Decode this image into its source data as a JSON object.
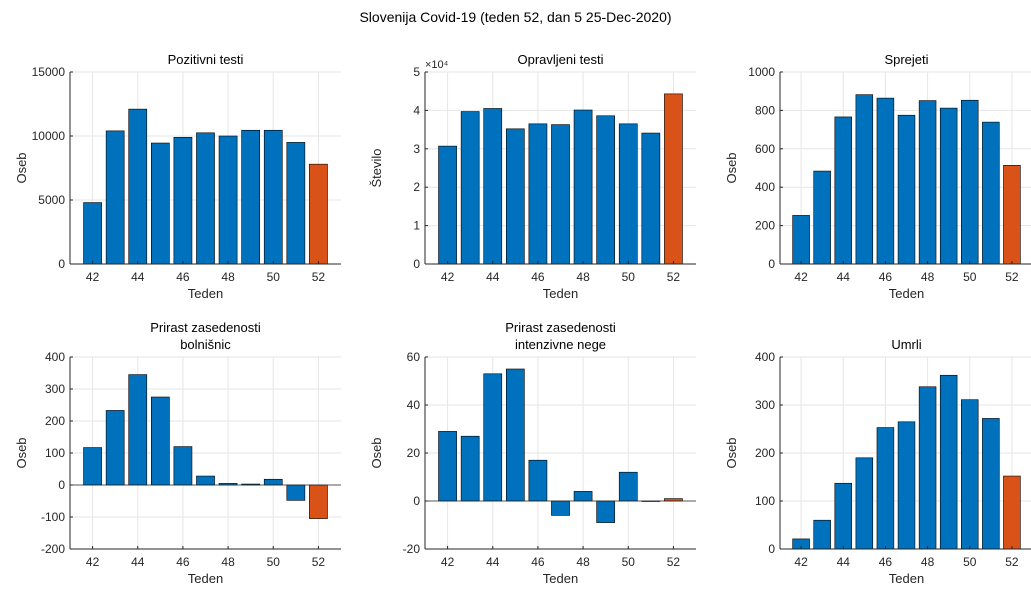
{
  "suptitle": "Slovenija Covid-19 (teden 52, dan 5 25-Dec-2020)",
  "colors": {
    "bar": "#0072BD",
    "highlight": "#D95319",
    "axis": "#262626",
    "grid": "#e6e6e6"
  },
  "chart_data": [
    {
      "type": "bar",
      "title": [
        "Pozitivni testi"
      ],
      "xlabel": "Teden",
      "ylabel": "Oseb",
      "categories": [
        42,
        43,
        44,
        45,
        46,
        47,
        48,
        49,
        50,
        51,
        52
      ],
      "values": [
        4800,
        10400,
        12100,
        9450,
        9900,
        10250,
        10000,
        10450,
        10450,
        9500,
        7800
      ],
      "highlight_index": 10,
      "xticks": [
        "42",
        "44",
        "46",
        "48",
        "50",
        "52"
      ],
      "ylim": [
        0,
        15000
      ],
      "yticks": [
        0,
        5000,
        10000,
        15000
      ],
      "ytick_labels": [
        "0",
        "5000",
        "10000",
        "15000"
      ],
      "exponent": "",
      "grid": true
    },
    {
      "type": "bar",
      "title": [
        "Opravljeni testi"
      ],
      "xlabel": "Teden",
      "ylabel": "Število",
      "categories": [
        42,
        43,
        44,
        45,
        46,
        47,
        48,
        49,
        50,
        51,
        52
      ],
      "values": [
        30700,
        39700,
        40500,
        35200,
        36500,
        36300,
        40100,
        38600,
        36500,
        34100,
        44300
      ],
      "highlight_index": 10,
      "xticks": [
        "42",
        "44",
        "46",
        "48",
        "50",
        "52"
      ],
      "ylim": [
        0,
        50000
      ],
      "yticks": [
        0,
        10000,
        20000,
        30000,
        40000,
        50000
      ],
      "ytick_labels": [
        "0",
        "1",
        "2",
        "3",
        "4",
        "5"
      ],
      "exponent": "×10⁴",
      "grid": true
    },
    {
      "type": "bar",
      "title": [
        "Sprejeti"
      ],
      "xlabel": "Teden",
      "ylabel": "Oseb",
      "categories": [
        42,
        43,
        44,
        45,
        46,
        47,
        48,
        49,
        50,
        51,
        52
      ],
      "values": [
        253,
        484,
        766,
        882,
        864,
        775,
        851,
        812,
        853,
        739,
        514
      ],
      "highlight_index": 10,
      "xticks": [
        "42",
        "44",
        "46",
        "48",
        "50",
        "52"
      ],
      "ylim": [
        0,
        1000
      ],
      "yticks": [
        0,
        200,
        400,
        600,
        800,
        1000
      ],
      "ytick_labels": [
        "0",
        "200",
        "400",
        "600",
        "800",
        "1000"
      ],
      "exponent": "",
      "grid": true
    },
    {
      "type": "bar",
      "title": [
        "Prirast zasedenosti",
        "bolnišnic"
      ],
      "xlabel": "Teden",
      "ylabel": "Oseb",
      "categories": [
        42,
        43,
        44,
        45,
        46,
        47,
        48,
        49,
        50,
        51,
        52
      ],
      "values": [
        117,
        233,
        345,
        275,
        120,
        28,
        5,
        3,
        18,
        -48,
        -105
      ],
      "highlight_index": 10,
      "xticks": [
        "42",
        "44",
        "46",
        "48",
        "50",
        "52"
      ],
      "ylim": [
        -200,
        400
      ],
      "yticks": [
        -200,
        -100,
        0,
        100,
        200,
        300,
        400
      ],
      "ytick_labels": [
        "-200",
        "-100",
        "0",
        "100",
        "200",
        "300",
        "400"
      ],
      "exponent": "",
      "grid": true
    },
    {
      "type": "bar",
      "title": [
        "Prirast zasedenosti",
        "intenzivne nege"
      ],
      "xlabel": "Teden",
      "ylabel": "Oseb",
      "categories": [
        42,
        43,
        44,
        45,
        46,
        47,
        48,
        49,
        50,
        51,
        52
      ],
      "values": [
        29,
        27,
        53,
        55,
        17,
        -6,
        4,
        -9,
        12,
        0,
        1
      ],
      "highlight_index": 10,
      "xticks": [
        "42",
        "44",
        "46",
        "48",
        "50",
        "52"
      ],
      "ylim": [
        -20,
        60
      ],
      "yticks": [
        -20,
        0,
        20,
        40,
        60
      ],
      "ytick_labels": [
        "-20",
        "0",
        "20",
        "40",
        "60"
      ],
      "exponent": "",
      "grid": true
    },
    {
      "type": "bar",
      "title": [
        "Umrli"
      ],
      "xlabel": "Teden",
      "ylabel": "Oseb",
      "categories": [
        42,
        43,
        44,
        45,
        46,
        47,
        48,
        49,
        50,
        51,
        52
      ],
      "values": [
        21,
        60,
        137,
        190,
        253,
        265,
        338,
        362,
        311,
        272,
        152
      ],
      "highlight_index": 10,
      "xticks": [
        "42",
        "44",
        "46",
        "48",
        "50",
        "52"
      ],
      "ylim": [
        0,
        400
      ],
      "yticks": [
        0,
        100,
        200,
        300,
        400
      ],
      "ytick_labels": [
        "0",
        "100",
        "200",
        "300",
        "400"
      ],
      "exponent": "",
      "grid": true
    }
  ]
}
